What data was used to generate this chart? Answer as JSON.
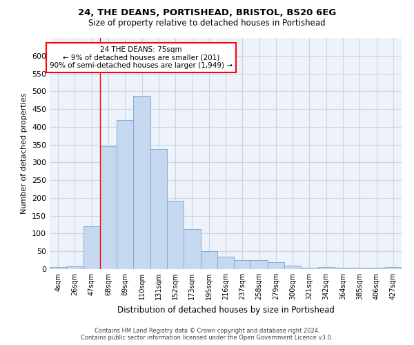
{
  "title": "24, THE DEANS, PORTISHEAD, BRISTOL, BS20 6EG",
  "subtitle": "Size of property relative to detached houses in Portishead",
  "xlabel": "Distribution of detached houses by size in Portishead",
  "ylabel": "Number of detached properties",
  "bar_color": "#c5d8f0",
  "bar_edge_color": "#7bafd4",
  "categories": [
    "4sqm",
    "26sqm",
    "47sqm",
    "68sqm",
    "89sqm",
    "110sqm",
    "131sqm",
    "152sqm",
    "173sqm",
    "195sqm",
    "216sqm",
    "237sqm",
    "258sqm",
    "279sqm",
    "300sqm",
    "321sqm",
    "342sqm",
    "364sqm",
    "385sqm",
    "406sqm",
    "427sqm"
  ],
  "values": [
    5,
    8,
    120,
    345,
    420,
    487,
    338,
    193,
    112,
    50,
    35,
    26,
    25,
    19,
    10,
    3,
    5,
    4,
    3,
    4,
    5
  ],
  "ylim": [
    0,
    650
  ],
  "yticks": [
    0,
    50,
    100,
    150,
    200,
    250,
    300,
    350,
    400,
    450,
    500,
    550,
    600
  ],
  "marker_label": "24 THE DEANS: 75sqm",
  "annotation_line1": "← 9% of detached houses are smaller (201)",
  "annotation_line2": "90% of semi-detached houses are larger (1,949) →",
  "red_line_bin_index": 3,
  "grid_color": "#c8d4e8",
  "background_color": "#eef2fa",
  "footer1": "Contains HM Land Registry data © Crown copyright and database right 2024.",
  "footer2": "Contains public sector information licensed under the Open Government Licence v3.0."
}
